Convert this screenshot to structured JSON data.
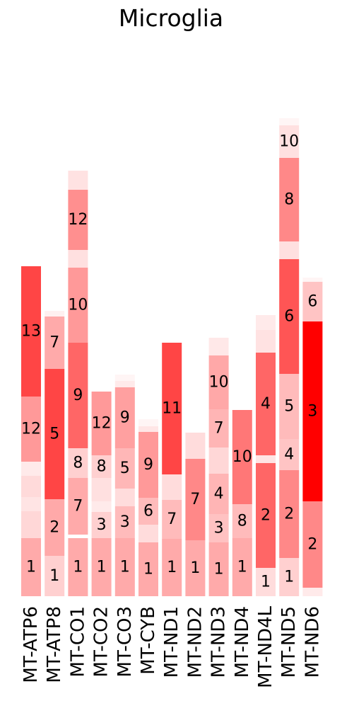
{
  "chart_data": {
    "type": "bar",
    "stacked": true,
    "title": "Microglia",
    "xlabel": "",
    "ylabel": "",
    "grid": false,
    "legend": "none",
    "axes_visible": false,
    "ylim": [
      0,
      680
    ],
    "categories": [
      "MT-ATP6",
      "MT-ATP8",
      "MT-CO1",
      "MT-CO2",
      "MT-CO3",
      "MT-CYB",
      "MT-ND1",
      "MT-ND2",
      "MT-ND3",
      "MT-ND4",
      "MT-ND4L",
      "MT-ND5",
      "MT-ND6"
    ],
    "stacks": [
      {
        "category": "MT-ATP6",
        "segments": [
          {
            "label": "1",
            "value": 82,
            "color": "#ffaaaa"
          },
          {
            "label": "",
            "value": 38,
            "color": "#ffd7d7"
          },
          {
            "label": "",
            "value": 20,
            "color": "#ffe4e4"
          },
          {
            "label": "",
            "value": 30,
            "color": "#ffdada"
          },
          {
            "label": "",
            "value": 20,
            "color": "#ffeaea"
          },
          {
            "label": "12",
            "value": 92,
            "color": "#ff9999"
          },
          {
            "label": "13",
            "value": 184,
            "color": "#ff4545"
          }
        ]
      },
      {
        "category": "MT-ATP8",
        "segments": [
          {
            "label": "1",
            "value": 57,
            "color": "#ffd0d0"
          },
          {
            "label": "2",
            "value": 80,
            "color": "#ffa9a9"
          },
          {
            "label": "5",
            "value": 184,
            "color": "#ff4545"
          },
          {
            "label": "7",
            "value": 74,
            "color": "#ffaaaa"
          },
          {
            "label": "",
            "value": 8,
            "color": "#fff0f0"
          }
        ]
      },
      {
        "category": "MT-CO1",
        "segments": [
          {
            "label": "1",
            "value": 82,
            "color": "#ffaaaa"
          },
          {
            "label": "",
            "value": 5,
            "color": "#ffffff"
          },
          {
            "label": "7",
            "value": 80,
            "color": "#ffaaaa"
          },
          {
            "label": "8",
            "value": 42,
            "color": "#ffd0d0"
          },
          {
            "label": "9",
            "value": 149,
            "color": "#ff6666"
          },
          {
            "label": "10",
            "value": 106,
            "color": "#ff9999"
          },
          {
            "label": "",
            "value": 25,
            "color": "#ffe0e0"
          },
          {
            "label": "12",
            "value": 85,
            "color": "#ff8f8f"
          },
          {
            "label": "",
            "value": 27,
            "color": "#ffe2e2"
          }
        ]
      },
      {
        "category": "MT-CO2",
        "segments": [
          {
            "label": "1",
            "value": 82,
            "color": "#ffaaaa"
          },
          {
            "label": "3",
            "value": 37,
            "color": "#ffd0d0"
          },
          {
            "label": "",
            "value": 15,
            "color": "#ffeaea"
          },
          {
            "label": "",
            "value": 33,
            "color": "#ffe0e0"
          },
          {
            "label": "8",
            "value": 32,
            "color": "#ffd0d0"
          },
          {
            "label": "12",
            "value": 90,
            "color": "#ff9999"
          },
          {
            "label": "",
            "value": 0,
            "color": "#ffffff"
          }
        ]
      },
      {
        "category": "MT-CO3",
        "segments": [
          {
            "label": "1",
            "value": 82,
            "color": "#ffaaaa"
          },
          {
            "label": "3",
            "value": 45,
            "color": "#ffbbbb"
          },
          {
            "label": "",
            "value": 25,
            "color": "#ffdcdc"
          },
          {
            "label": "5",
            "value": 57,
            "color": "#ffb7b7"
          },
          {
            "label": "9",
            "value": 86,
            "color": "#ffa0a0"
          },
          {
            "label": "",
            "value": 9,
            "color": "#ffeaea"
          },
          {
            "label": "",
            "value": 9,
            "color": "#fff5f5"
          }
        ]
      },
      {
        "category": "MT-CYB",
        "segments": [
          {
            "label": "1",
            "value": 76,
            "color": "#ffaaaa"
          },
          {
            "label": "",
            "value": 25,
            "color": "#ffdcdc"
          },
          {
            "label": "6",
            "value": 38,
            "color": "#ffbbbb"
          },
          {
            "label": "9",
            "value": 93,
            "color": "#ff9999"
          },
          {
            "label": "",
            "value": 8,
            "color": "#ffe6e6"
          },
          {
            "label": "",
            "value": 10,
            "color": "#fff5f5"
          }
        ]
      },
      {
        "category": "MT-ND1",
        "segments": [
          {
            "label": "1",
            "value": 81,
            "color": "#ffaaaa"
          },
          {
            "label": "7",
            "value": 55,
            "color": "#ffbbbb"
          },
          {
            "label": "",
            "value": 36,
            "color": "#ffdcdc"
          },
          {
            "label": "11",
            "value": 186,
            "color": "#ff4545"
          }
        ]
      },
      {
        "category": "MT-ND2",
        "segments": [
          {
            "label": "1",
            "value": 79,
            "color": "#ffaaaa"
          },
          {
            "label": "",
            "value": 0,
            "color": "#ffffff"
          },
          {
            "label": "7",
            "value": 115,
            "color": "#ff8888"
          },
          {
            "label": "",
            "value": 37,
            "color": "#ffdcdc"
          }
        ]
      },
      {
        "category": "MT-ND3",
        "segments": [
          {
            "label": "1",
            "value": 76,
            "color": "#ffaaaa"
          },
          {
            "label": "3",
            "value": 40,
            "color": "#ffc2c2"
          },
          {
            "label": "4",
            "value": 57,
            "color": "#ffb5b5"
          },
          {
            "label": "",
            "value": 37,
            "color": "#ffd7d7"
          },
          {
            "label": "7",
            "value": 54,
            "color": "#ffb5b5"
          },
          {
            "label": "10",
            "value": 76,
            "color": "#ffa8a8"
          },
          {
            "label": "",
            "value": 0,
            "color": "#ffffff"
          },
          {
            "label": "",
            "value": 25,
            "color": "#ffe8e8"
          }
        ]
      },
      {
        "category": "MT-ND4",
        "segments": [
          {
            "label": "1",
            "value": 82,
            "color": "#ffaaaa"
          },
          {
            "label": "8",
            "value": 48,
            "color": "#ffbbbb"
          },
          {
            "label": "10",
            "value": 133,
            "color": "#ff7777"
          }
        ]
      },
      {
        "category": "MT-ND4L",
        "segments": [
          {
            "label": "1",
            "value": 40,
            "color": "#ffdcdc"
          },
          {
            "label": "2",
            "value": 148,
            "color": "#ff6666"
          },
          {
            "label": "",
            "value": 11,
            "color": "#ffe4e4"
          },
          {
            "label": "4",
            "value": 145,
            "color": "#ff6666"
          },
          {
            "label": "",
            "value": 32,
            "color": "#ffe2e2"
          },
          {
            "label": "",
            "value": 21,
            "color": "#ffeaea"
          }
        ]
      },
      {
        "category": "MT-ND5",
        "segments": [
          {
            "label": "1",
            "value": 54,
            "color": "#ffd0d0"
          },
          {
            "label": "2",
            "value": 124,
            "color": "#ff8888"
          },
          {
            "label": "4",
            "value": 44,
            "color": "#ffc4c4"
          },
          {
            "label": "5",
            "value": 92,
            "color": "#ffbbbb"
          },
          {
            "label": "6",
            "value": 162,
            "color": "#ff5555"
          },
          {
            "label": "",
            "value": 25,
            "color": "#ffe0e0"
          },
          {
            "label": "8",
            "value": 118,
            "color": "#ff8888"
          },
          {
            "label": "10",
            "value": 46,
            "color": "#ffe0e0"
          },
          {
            "label": "",
            "value": 10,
            "color": "#fff5f5"
          }
        ]
      },
      {
        "category": "MT-ND6",
        "segments": [
          {
            "label": "",
            "value": 12,
            "color": "#ffeaea"
          },
          {
            "label": "2",
            "value": 122,
            "color": "#ff8888"
          },
          {
            "label": "3",
            "value": 254,
            "color": "#ff0000"
          },
          {
            "label": "6",
            "value": 56,
            "color": "#ffc4c4"
          },
          {
            "label": "",
            "value": 6,
            "color": "#fff5f5"
          }
        ]
      }
    ]
  }
}
